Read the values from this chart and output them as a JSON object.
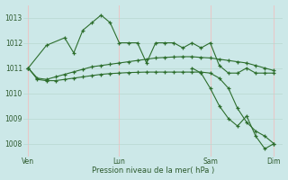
{
  "xlabel": "Pression niveau de la mer( hPa )",
  "ylim": [
    1007.5,
    1013.5
  ],
  "yticks": [
    1008,
    1009,
    1010,
    1011,
    1012,
    1013
  ],
  "bg_color": "#cce8e8",
  "vgrid_color": "#e8c8c8",
  "hgrid_color": "#b8d8d0",
  "line_color": "#2d6e2d",
  "xtick_labels": [
    "Ven",
    "Lun",
    "Sam",
    "Dim"
  ],
  "xtick_positions": [
    0,
    10,
    20,
    27
  ],
  "series1_x": [
    0,
    2,
    4,
    5,
    6,
    7,
    8,
    9,
    10,
    11,
    12,
    13,
    14,
    15,
    16,
    17,
    18,
    19,
    20,
    21,
    22,
    23,
    24,
    25,
    26,
    27
  ],
  "series1_y": [
    1011.0,
    1011.9,
    1012.2,
    1011.6,
    1012.5,
    1012.8,
    1013.1,
    1012.8,
    1012.0,
    1012.0,
    1012.0,
    1011.2,
    1012.0,
    1012.0,
    1012.0,
    1011.8,
    1012.0,
    1011.8,
    1012.0,
    1011.1,
    1010.8,
    1010.8,
    1011.0,
    1010.8,
    1010.8,
    1010.8
  ],
  "series2_x": [
    0,
    1,
    2,
    3,
    4,
    5,
    6,
    7,
    8,
    9,
    10,
    11,
    12,
    13,
    14,
    15,
    16,
    17,
    18,
    19,
    20,
    21,
    22,
    23,
    24,
    25,
    26,
    27
  ],
  "series2_y": [
    1011.0,
    1010.6,
    1010.55,
    1010.65,
    1010.75,
    1010.85,
    1010.95,
    1011.05,
    1011.1,
    1011.15,
    1011.2,
    1011.25,
    1011.3,
    1011.35,
    1011.4,
    1011.42,
    1011.44,
    1011.45,
    1011.45,
    1011.42,
    1011.4,
    1011.35,
    1011.3,
    1011.25,
    1011.2,
    1011.1,
    1011.0,
    1010.9
  ],
  "series3_x": [
    0,
    1,
    2,
    3,
    4,
    5,
    6,
    7,
    8,
    9,
    10,
    11,
    12,
    13,
    14,
    15,
    16,
    17,
    18,
    19,
    20,
    21,
    22,
    23,
    24,
    25,
    26,
    27
  ],
  "series3_y": [
    1011.0,
    1010.55,
    1010.5,
    1010.5,
    1010.55,
    1010.6,
    1010.65,
    1010.7,
    1010.75,
    1010.78,
    1010.8,
    1010.82,
    1010.83,
    1010.84,
    1010.84,
    1010.84,
    1010.84,
    1010.84,
    1010.84,
    1010.84,
    1010.8,
    1010.6,
    1010.2,
    1009.4,
    1008.85,
    1008.5,
    1008.3,
    1008.0
  ],
  "series_drop_x": [
    18,
    19,
    20,
    21,
    22,
    23,
    24,
    25,
    26,
    27
  ],
  "series_drop_y": [
    1011.0,
    1010.8,
    1010.2,
    1009.5,
    1009.0,
    1008.7,
    1009.1,
    1008.3,
    1007.8,
    1008.0
  ],
  "xlim": [
    -0.5,
    28
  ]
}
